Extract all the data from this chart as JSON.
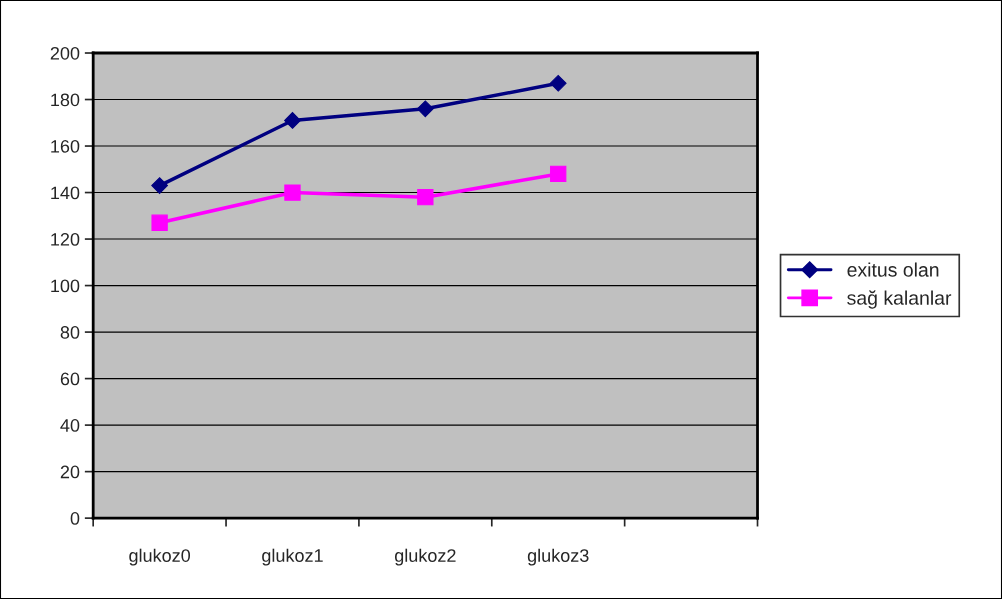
{
  "chart_data": {
    "type": "line",
    "categories": [
      "glukoz0",
      "glukoz1",
      "glukoz2",
      "glukoz3",
      null
    ],
    "series": [
      {
        "name": "exitus olan",
        "color": "#000080",
        "marker": "diamond",
        "values": [
          143,
          171,
          176,
          187,
          null
        ]
      },
      {
        "name": "sağ kalanlar",
        "color": "#ff00ff",
        "marker": "square",
        "values": [
          127,
          140,
          138,
          148,
          null
        ]
      }
    ],
    "ylim": [
      0,
      200
    ],
    "yticks": [
      0,
      20,
      40,
      60,
      80,
      100,
      120,
      140,
      160,
      180,
      200
    ],
    "grid": "y",
    "legend": "right",
    "line_style": "solid"
  }
}
